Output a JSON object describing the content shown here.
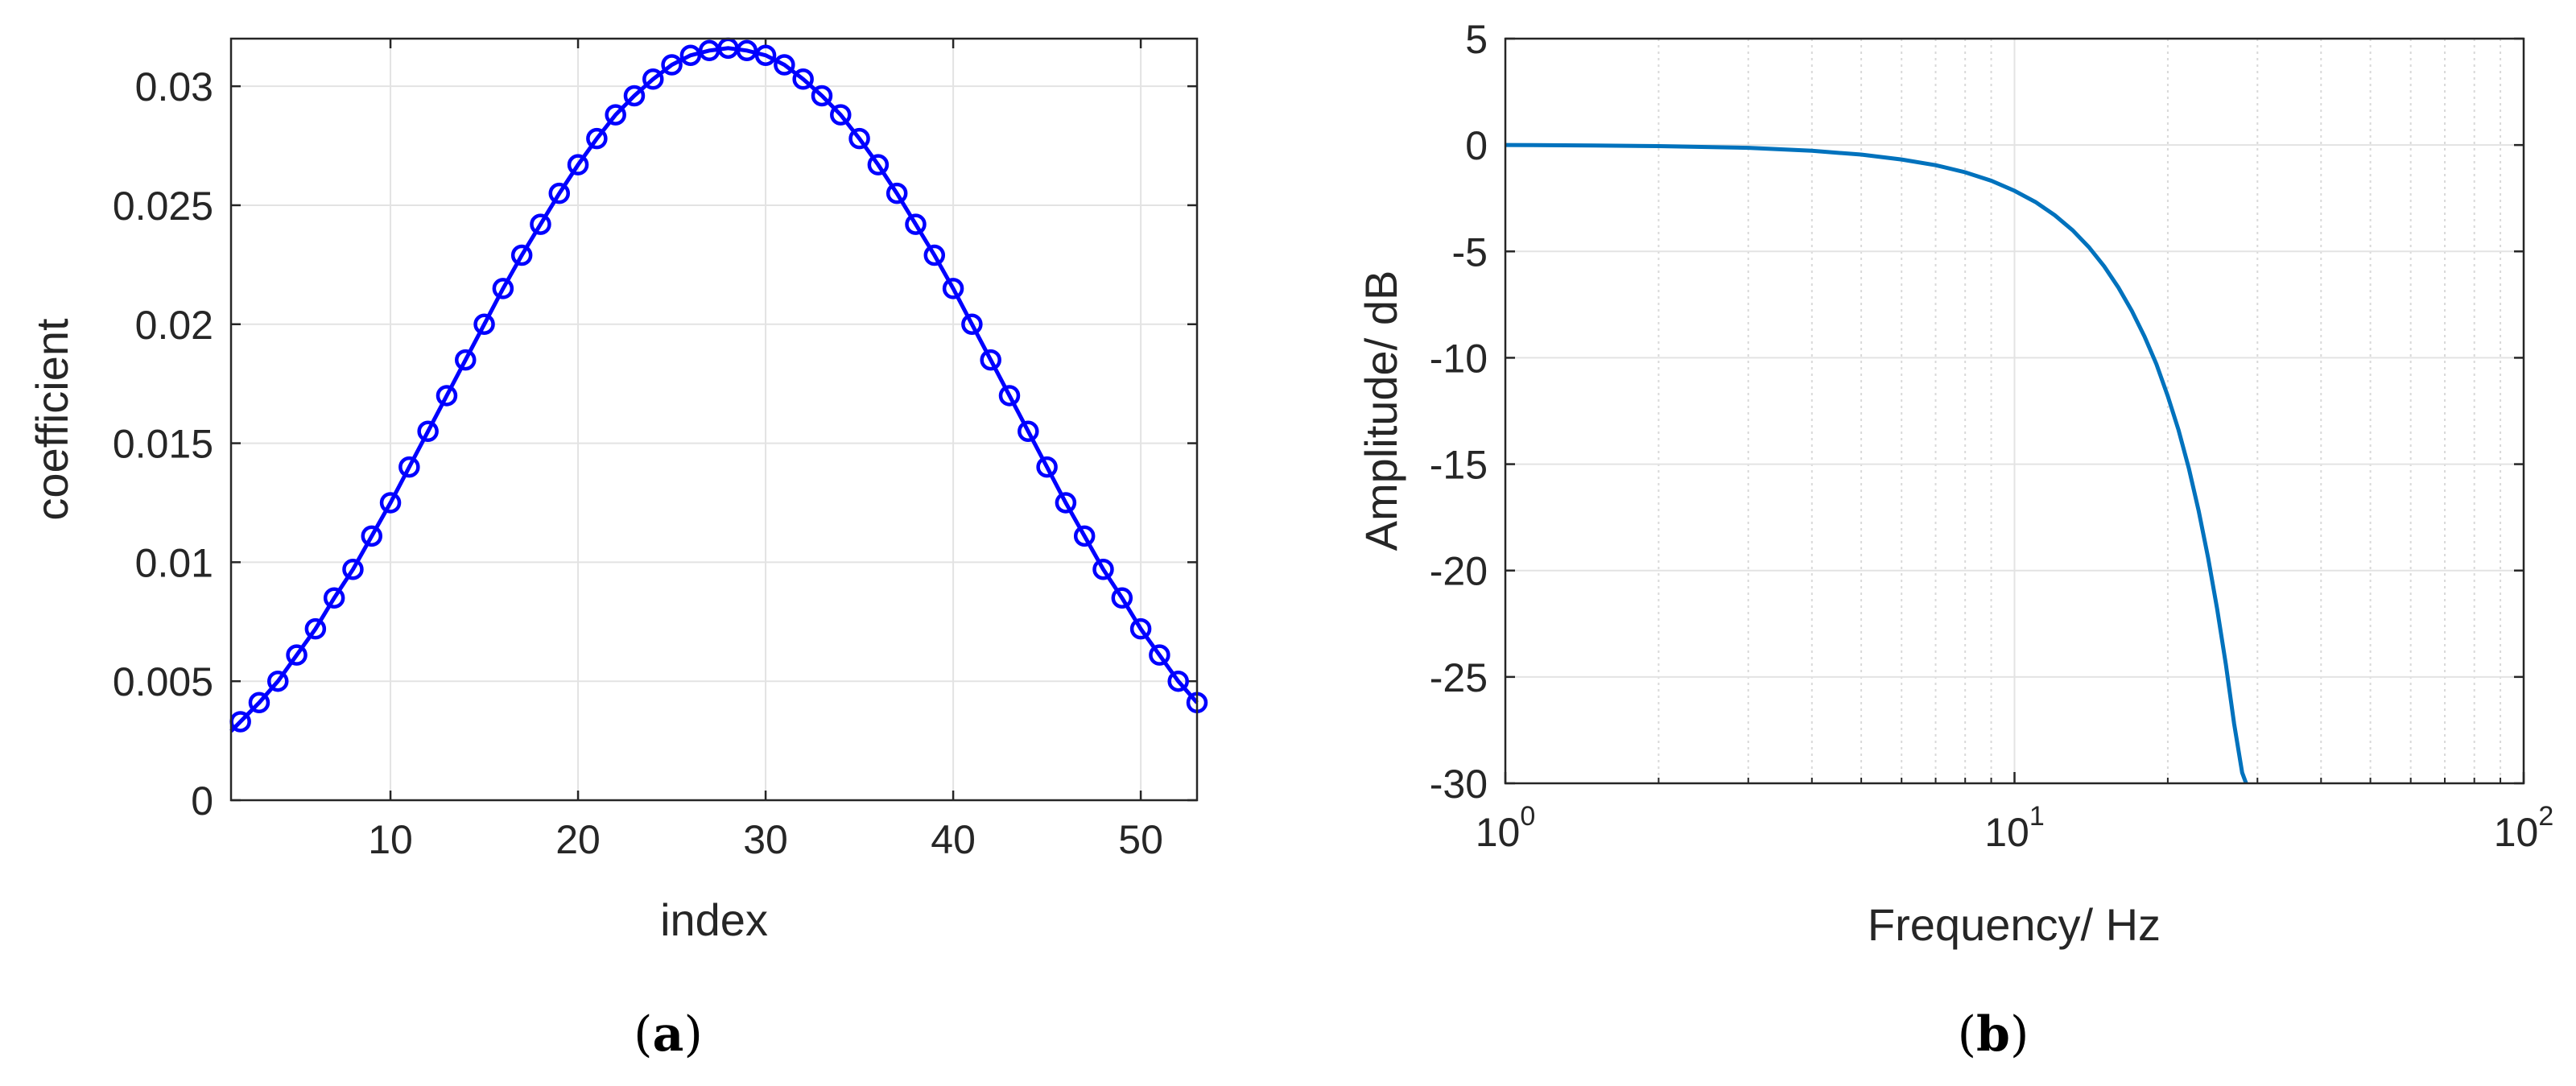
{
  "chart_data": [
    {
      "type": "line",
      "panel_label": "(a)",
      "panel_letter": "a",
      "xlabel": "index",
      "ylabel": "coefficient",
      "xlim": [
        1.5,
        53
      ],
      "ylim": [
        0,
        0.032
      ],
      "xticks": [
        10,
        20,
        30,
        40,
        50
      ],
      "xtick_labels": [
        "10",
        "20",
        "30",
        "40",
        "50"
      ],
      "yticks": [
        0,
        0.005,
        0.01,
        0.015,
        0.02,
        0.025,
        0.03
      ],
      "ytick_labels": [
        "0",
        "0.005",
        "0.01",
        "0.015",
        "0.02",
        "0.025",
        "0.03"
      ],
      "grid": true,
      "marker": "circle",
      "color": "#0000ff",
      "series": [
        {
          "x": [
            1,
            2,
            3,
            4,
            5,
            6,
            7,
            8,
            9,
            10,
            11,
            12,
            13,
            14,
            15,
            16,
            17,
            18,
            19,
            20,
            21,
            22,
            23,
            24,
            25,
            26,
            27,
            28,
            29,
            30,
            31,
            32,
            33,
            34,
            35,
            36,
            37,
            38,
            39,
            40,
            41,
            42,
            43,
            44,
            45,
            46,
            47,
            48,
            49,
            50,
            51,
            52,
            53
          ],
          "values": [
            0.0025,
            0.0033,
            0.0041,
            0.005,
            0.0061,
            0.0072,
            0.0085,
            0.0097,
            0.0111,
            0.0125,
            0.014,
            0.0155,
            0.017,
            0.0185,
            0.02,
            0.0215,
            0.0229,
            0.0242,
            0.0255,
            0.0267,
            0.0278,
            0.0288,
            0.0296,
            0.0303,
            0.0309,
            0.0313,
            0.0315,
            0.0316,
            0.0315,
            0.0313,
            0.0309,
            0.0303,
            0.0296,
            0.0288,
            0.0278,
            0.0267,
            0.0255,
            0.0242,
            0.0229,
            0.0215,
            0.02,
            0.0185,
            0.017,
            0.0155,
            0.014,
            0.0125,
            0.0111,
            0.0097,
            0.0085,
            0.0072,
            0.0061,
            0.005,
            0.0041
          ]
        }
      ]
    },
    {
      "type": "line",
      "panel_label": "(b)",
      "panel_letter": "b",
      "xlabel": "Frequency/ Hz",
      "ylabel": "Amplitude/ dB",
      "xscale": "log",
      "xlim": [
        1,
        100
      ],
      "ylim": [
        -30,
        5
      ],
      "xticks": [
        1,
        10,
        100
      ],
      "xtick_bases": [
        "10",
        "10",
        "10"
      ],
      "xtick_exponents": [
        "0",
        "1",
        "2"
      ],
      "yticks": [
        -30,
        -25,
        -20,
        -15,
        -10,
        -5,
        0,
        5
      ],
      "ytick_labels": [
        "-30",
        "-25",
        "-20",
        "-15",
        "-10",
        "-5",
        "0",
        "5"
      ],
      "grid": true,
      "minor_grid": true,
      "color": "#0072bd",
      "series": [
        {
          "x": [
            1,
            1.5,
            2,
            3,
            4,
            5,
            6,
            7,
            8,
            9,
            10,
            11,
            12,
            13,
            14,
            15,
            16,
            17,
            18,
            19,
            20,
            21,
            22,
            23,
            24,
            25,
            26,
            27,
            28,
            28.5
          ],
          "values": [
            0,
            -0.02,
            -0.05,
            -0.13,
            -0.27,
            -0.45,
            -0.68,
            -0.95,
            -1.28,
            -1.68,
            -2.15,
            -2.68,
            -3.3,
            -4.0,
            -4.8,
            -5.7,
            -6.7,
            -7.8,
            -9.0,
            -10.3,
            -11.8,
            -13.4,
            -15.2,
            -17.2,
            -19.4,
            -21.8,
            -24.4,
            -27.2,
            -29.5,
            -30.0
          ]
        }
      ]
    }
  ]
}
